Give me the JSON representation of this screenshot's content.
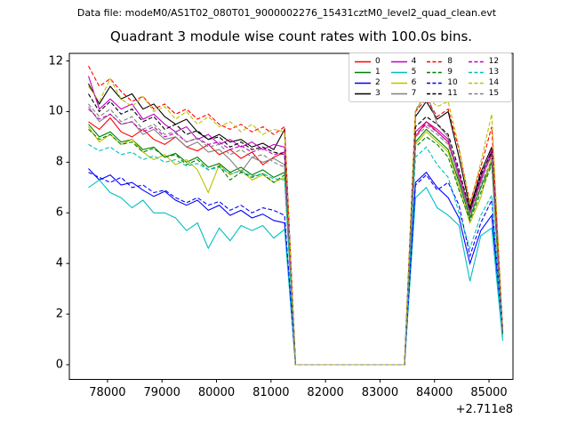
{
  "header": {
    "datafile_label": "Data file: modeM0/AS1T02_080T01_9000002276_15431cztM0_level2_quad_clean.evt"
  },
  "chart_data": {
    "type": "line",
    "title": "Quadrant 3 module wise count rates with 100.0s bins.",
    "xlabel": "",
    "ylabel": "",
    "x_offset_label": "+2.711e8",
    "grid": false,
    "legend_position": "upper right",
    "xlim": [
      77300,
      85440
    ],
    "ylim": [
      -0.58,
      12.3
    ],
    "x_ticks": [
      78000,
      79000,
      80000,
      81000,
      82000,
      83000,
      84000,
      85000
    ],
    "y_ticks": [
      0,
      2,
      4,
      6,
      8,
      10,
      12
    ],
    "x": [
      77650,
      77850,
      78050,
      78250,
      78450,
      78650,
      78850,
      79050,
      79250,
      79450,
      79650,
      79850,
      80050,
      80250,
      80450,
      80650,
      80850,
      81050,
      81250,
      81450,
      81650,
      81850,
      82050,
      82250,
      82450,
      82650,
      82850,
      83050,
      83250,
      83450,
      83650,
      83850,
      84050,
      84250,
      84450,
      84650,
      84850,
      85050,
      85250
    ],
    "series": [
      {
        "name": "0",
        "color": "#ff0000",
        "dash": "solid",
        "values": [
          9.6,
          9.3,
          9.75,
          9.2,
          9.0,
          9.3,
          8.9,
          8.7,
          9.0,
          8.6,
          8.45,
          8.7,
          8.3,
          8.5,
          8.15,
          8.4,
          7.9,
          8.2,
          8.4,
          0,
          0,
          0,
          0,
          0,
          0,
          0,
          0,
          0,
          0,
          0,
          9.0,
          9.6,
          9.2,
          8.8,
          7.4,
          6.0,
          7.3,
          8.3,
          1.3
        ]
      },
      {
        "name": "1",
        "color": "#008000",
        "dash": "solid",
        "values": [
          9.5,
          9.0,
          9.2,
          8.8,
          8.9,
          8.5,
          8.6,
          8.2,
          8.35,
          8.0,
          8.2,
          7.8,
          7.95,
          7.6,
          7.8,
          7.5,
          7.7,
          7.4,
          7.6,
          0,
          0,
          0,
          0,
          0,
          0,
          0,
          0,
          0,
          0,
          0,
          8.8,
          9.3,
          8.9,
          8.5,
          7.2,
          5.8,
          7.0,
          8.0,
          1.2
        ]
      },
      {
        "name": "2",
        "color": "#0000ff",
        "dash": "solid",
        "values": [
          7.75,
          7.3,
          7.5,
          7.1,
          7.2,
          6.9,
          6.65,
          6.85,
          6.5,
          6.3,
          6.5,
          6.1,
          6.3,
          5.9,
          6.1,
          5.8,
          5.95,
          5.7,
          5.6,
          0,
          0,
          0,
          0,
          0,
          0,
          0,
          0,
          0,
          0,
          0,
          7.2,
          7.6,
          7.0,
          6.6,
          5.8,
          4.0,
          5.3,
          5.9,
          1.25
        ]
      },
      {
        "name": "3",
        "color": "#000000",
        "dash": "solid",
        "values": [
          11.1,
          10.3,
          11.0,
          10.5,
          10.7,
          10.1,
          10.3,
          9.8,
          9.5,
          9.7,
          9.2,
          8.9,
          9.1,
          8.8,
          8.9,
          8.6,
          8.75,
          8.5,
          9.3,
          0,
          0,
          0,
          0,
          0,
          0,
          0,
          0,
          0,
          0,
          0,
          9.8,
          10.4,
          9.7,
          10.0,
          8.2,
          6.2,
          7.6,
          8.6,
          1.35
        ]
      },
      {
        "name": "4",
        "color": "#bf00bf",
        "dash": "solid",
        "values": [
          11.4,
          10.1,
          10.5,
          10.1,
          10.3,
          9.7,
          9.9,
          9.5,
          9.2,
          9.4,
          8.9,
          9.1,
          8.7,
          8.9,
          8.6,
          8.8,
          8.5,
          8.7,
          8.6,
          0,
          0,
          0,
          0,
          0,
          0,
          0,
          0,
          0,
          0,
          0,
          9.2,
          9.6,
          9.3,
          8.9,
          7.5,
          6.1,
          7.4,
          8.5,
          1.3
        ]
      },
      {
        "name": "5",
        "color": "#00bfbf",
        "dash": "solid",
        "values": [
          7.0,
          7.3,
          6.8,
          6.6,
          6.2,
          6.5,
          6.0,
          6.0,
          5.8,
          5.3,
          5.6,
          4.6,
          5.4,
          4.9,
          5.5,
          5.3,
          5.5,
          5.0,
          5.35,
          0,
          0,
          0,
          0,
          0,
          0,
          0,
          0,
          0,
          0,
          0,
          6.6,
          7.0,
          6.2,
          5.9,
          5.5,
          3.3,
          5.1,
          5.4,
          0.95
        ]
      },
      {
        "name": "6",
        "color": "#bfbf00",
        "dash": "solid",
        "values": [
          9.4,
          8.8,
          9.1,
          8.7,
          8.9,
          8.4,
          8.1,
          8.3,
          7.9,
          8.1,
          7.7,
          6.8,
          7.9,
          7.5,
          7.7,
          7.3,
          7.5,
          7.2,
          7.4,
          0,
          0,
          0,
          0,
          0,
          0,
          0,
          0,
          0,
          0,
          0,
          8.7,
          9.2,
          8.8,
          8.4,
          7.0,
          5.6,
          6.6,
          8.2,
          1.25
        ]
      },
      {
        "name": "7",
        "color": "#808080",
        "dash": "solid",
        "values": [
          10.2,
          9.6,
          9.9,
          9.5,
          9.6,
          9.1,
          9.3,
          8.9,
          9.0,
          8.6,
          8.8,
          8.4,
          8.5,
          8.1,
          7.6,
          8.2,
          8.0,
          8.15,
          7.9,
          0,
          0,
          0,
          0,
          0,
          0,
          0,
          0,
          0,
          0,
          0,
          10.0,
          10.8,
          9.5,
          9.0,
          7.3,
          6.0,
          7.2,
          8.4,
          1.3
        ]
      },
      {
        "name": "8",
        "color": "#ff0000",
        "dash": "dashed",
        "values": [
          11.8,
          11.0,
          11.3,
          10.8,
          10.4,
          10.6,
          10.1,
          10.3,
          9.9,
          10.1,
          9.7,
          9.9,
          9.5,
          9.3,
          9.5,
          9.2,
          9.4,
          9.1,
          9.4,
          0,
          0,
          0,
          0,
          0,
          0,
          0,
          0,
          0,
          0,
          0,
          10.0,
          10.5,
          9.8,
          10.1,
          8.5,
          6.4,
          7.8,
          9.4,
          1.4
        ]
      },
      {
        "name": "9",
        "color": "#008000",
        "dash": "dashed",
        "values": [
          9.3,
          8.9,
          9.1,
          8.7,
          8.8,
          8.4,
          8.55,
          8.2,
          8.3,
          7.9,
          8.1,
          7.7,
          7.85,
          7.3,
          7.6,
          7.4,
          7.55,
          7.2,
          7.5,
          0,
          0,
          0,
          0,
          0,
          0,
          0,
          0,
          0,
          0,
          0,
          8.6,
          9.0,
          8.7,
          8.2,
          6.9,
          5.7,
          6.8,
          7.9,
          1.2
        ]
      },
      {
        "name": "10",
        "color": "#0000ff",
        "dash": "dashed",
        "values": [
          7.6,
          7.4,
          7.2,
          7.4,
          7.0,
          7.1,
          6.8,
          6.9,
          6.6,
          6.4,
          6.6,
          6.3,
          6.45,
          6.1,
          6.3,
          6.0,
          6.2,
          6.1,
          5.9,
          0,
          0,
          0,
          0,
          0,
          0,
          0,
          0,
          0,
          0,
          0,
          7.1,
          7.5,
          6.9,
          7.2,
          6.3,
          4.3,
          5.6,
          6.5,
          1.3
        ]
      },
      {
        "name": "11",
        "color": "#000000",
        "dash": "dashed",
        "values": [
          10.7,
          10.0,
          10.4,
          9.9,
          10.1,
          9.6,
          9.8,
          9.3,
          9.5,
          9.1,
          9.25,
          8.9,
          9.0,
          8.6,
          8.8,
          8.5,
          8.6,
          8.4,
          8.3,
          0,
          0,
          0,
          0,
          0,
          0,
          0,
          0,
          0,
          0,
          0,
          9.4,
          9.8,
          9.5,
          9.1,
          7.7,
          6.1,
          7.5,
          8.4,
          1.3
        ]
      },
      {
        "name": "12",
        "color": "#bf00bf",
        "dash": "dashed",
        "values": [
          10.1,
          9.7,
          9.9,
          9.5,
          9.6,
          9.2,
          9.4,
          9.0,
          9.15,
          8.8,
          8.95,
          8.7,
          8.8,
          8.5,
          8.65,
          8.4,
          8.55,
          8.3,
          8.4,
          0,
          0,
          0,
          0,
          0,
          0,
          0,
          0,
          0,
          0,
          0,
          9.1,
          9.5,
          9.2,
          8.8,
          7.6,
          6.0,
          7.3,
          8.3,
          1.3
        ]
      },
      {
        "name": "13",
        "color": "#00bfbf",
        "dash": "dashed",
        "values": [
          8.7,
          8.45,
          8.6,
          8.3,
          8.4,
          8.1,
          8.25,
          8.0,
          8.1,
          7.85,
          7.95,
          7.7,
          7.8,
          7.55,
          7.65,
          7.45,
          7.55,
          7.35,
          7.3,
          0,
          0,
          0,
          0,
          0,
          0,
          0,
          0,
          0,
          0,
          0,
          8.2,
          8.6,
          7.9,
          7.4,
          6.0,
          4.6,
          5.9,
          6.7,
          1.0
        ]
      },
      {
        "name": "14",
        "color": "#bfbf00",
        "dash": "dashed",
        "values": [
          11.0,
          10.4,
          11.3,
          10.5,
          10.2,
          10.6,
          10.0,
          10.2,
          9.7,
          10.0,
          9.5,
          9.8,
          9.4,
          9.6,
          9.2,
          9.5,
          9.1,
          9.3,
          9.2,
          0,
          0,
          0,
          0,
          0,
          0,
          0,
          0,
          0,
          0,
          0,
          10.1,
          10.6,
          10.2,
          10.4,
          8.6,
          6.3,
          8.0,
          9.9,
          1.4
        ]
      },
      {
        "name": "15",
        "color": "#808080",
        "dash": "dashed",
        "values": [
          10.3,
          9.8,
          10.1,
          9.6,
          9.8,
          9.3,
          9.5,
          9.1,
          9.2,
          8.8,
          8.95,
          8.6,
          8.7,
          8.3,
          8.5,
          8.2,
          8.3,
          8.0,
          7.8,
          0,
          0,
          0,
          0,
          0,
          0,
          0,
          0,
          0,
          0,
          0,
          9.0,
          9.4,
          9.1,
          8.7,
          7.4,
          5.9,
          7.1,
          8.1,
          1.25
        ]
      }
    ]
  }
}
